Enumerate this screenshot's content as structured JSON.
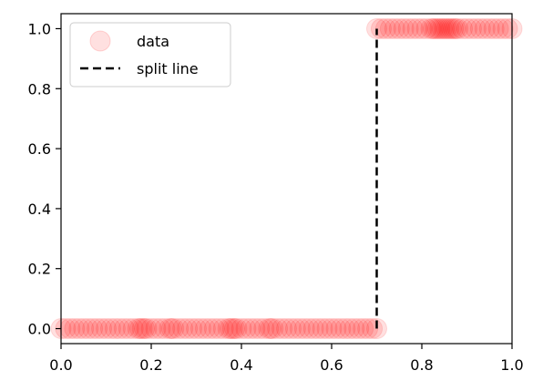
{
  "chart_data": {
    "type": "scatter",
    "title": "",
    "xlabel": "",
    "ylabel": "",
    "xlim": [
      0.0,
      1.0
    ],
    "ylim": [
      -0.05,
      1.05
    ],
    "x_ticks": [
      "0.0",
      "0.2",
      "0.4",
      "0.6",
      "0.8",
      "1.0"
    ],
    "y_ticks": [
      "0.0",
      "0.2",
      "0.4",
      "0.6",
      "0.8",
      "1.0"
    ],
    "grid": false,
    "legend_position": "upper-left",
    "series": [
      {
        "name": "data",
        "kind": "scatter",
        "color": "#ff0000",
        "alpha": 0.12,
        "points_y0": [
          0.0,
          0.01,
          0.02,
          0.03,
          0.04,
          0.05,
          0.06,
          0.07,
          0.08,
          0.09,
          0.1,
          0.11,
          0.12,
          0.13,
          0.14,
          0.15,
          0.16,
          0.17,
          0.175,
          0.18,
          0.185,
          0.19,
          0.2,
          0.21,
          0.22,
          0.23,
          0.24,
          0.245,
          0.25,
          0.26,
          0.27,
          0.28,
          0.29,
          0.3,
          0.31,
          0.32,
          0.33,
          0.34,
          0.35,
          0.36,
          0.37,
          0.375,
          0.38,
          0.385,
          0.39,
          0.4,
          0.41,
          0.42,
          0.43,
          0.44,
          0.45,
          0.46,
          0.465,
          0.47,
          0.48,
          0.49,
          0.5,
          0.51,
          0.52,
          0.53,
          0.54,
          0.55,
          0.56,
          0.57,
          0.58,
          0.59,
          0.6,
          0.61,
          0.62,
          0.63,
          0.64,
          0.65,
          0.66,
          0.67,
          0.68,
          0.69,
          0.7
        ],
        "points_y1": [
          0.7,
          0.71,
          0.72,
          0.73,
          0.74,
          0.75,
          0.76,
          0.77,
          0.78,
          0.79,
          0.8,
          0.81,
          0.82,
          0.825,
          0.83,
          0.835,
          0.84,
          0.845,
          0.85,
          0.855,
          0.86,
          0.865,
          0.87,
          0.875,
          0.88,
          0.89,
          0.9,
          0.91,
          0.92,
          0.93,
          0.94,
          0.95,
          0.96,
          0.97,
          0.98,
          0.99,
          1.0
        ]
      },
      {
        "name": "split line",
        "kind": "line",
        "style": "dashed",
        "color": "#000000",
        "x": [
          0.7,
          0.7
        ],
        "y": [
          0.0,
          1.0
        ]
      }
    ]
  }
}
